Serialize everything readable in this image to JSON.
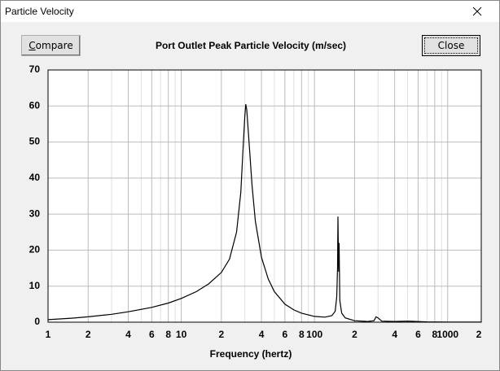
{
  "window": {
    "title": "Particle Velocity"
  },
  "buttons": {
    "compare": "Compare",
    "close": "Close"
  },
  "chart_data": {
    "type": "line",
    "title": "Port Outlet Peak Particle Velocity (m/sec)",
    "x_label": "Frequency (hertz)",
    "xscale": "log",
    "grid": true,
    "color": "#000000",
    "x": [
      1,
      1.5,
      2,
      3,
      4,
      6,
      8,
      10,
      13,
      16,
      20,
      23,
      26,
      28,
      29,
      30,
      30.5,
      31,
      32,
      34,
      36,
      40,
      45,
      50,
      60,
      70,
      80,
      100,
      120,
      135,
      143,
      147,
      149,
      150,
      151,
      152,
      153,
      155,
      160,
      170,
      200,
      250,
      280,
      290,
      300,
      320,
      400,
      500,
      700,
      1000,
      2000
    ],
    "values": [
      0.7,
      1.1,
      1.5,
      2.2,
      2.9,
      4.1,
      5.3,
      6.6,
      8.5,
      10.6,
      13.8,
      17.5,
      25,
      36,
      47,
      57,
      60.5,
      59,
      52,
      38,
      28,
      18,
      12,
      8.5,
      5,
      3.4,
      2.5,
      1.6,
      1.4,
      1.8,
      3,
      7,
      15,
      29.3,
      22,
      14,
      22,
      6,
      2.5,
      1.2,
      0.4,
      0.2,
      0.4,
      1.5,
      1.2,
      0.3,
      0.2,
      0.3,
      0.1,
      0.05,
      0.02
    ],
    "xlim": [
      1,
      2000
    ],
    "ylim": [
      0,
      70
    ],
    "xticks": [
      1,
      2,
      4,
      6,
      8,
      10,
      {
        "value": 20,
        "label": "2"
      },
      {
        "value": 40,
        "label": "4"
      },
      {
        "value": 60,
        "label": "6"
      },
      {
        "value": 80,
        "label": "8"
      },
      100,
      {
        "value": 200,
        "label": "2"
      },
      {
        "value": 400,
        "label": "4"
      },
      {
        "value": 600,
        "label": "6"
      },
      {
        "value": 800,
        "label": "8"
      },
      1000,
      {
        "value": 2000,
        "label": "2"
      }
    ],
    "xminor": [
      3,
      5,
      7,
      9,
      30,
      50,
      70,
      90,
      300,
      500,
      700,
      900
    ],
    "yticks": [
      0,
      10,
      20,
      30,
      40,
      50,
      60,
      70
    ]
  }
}
